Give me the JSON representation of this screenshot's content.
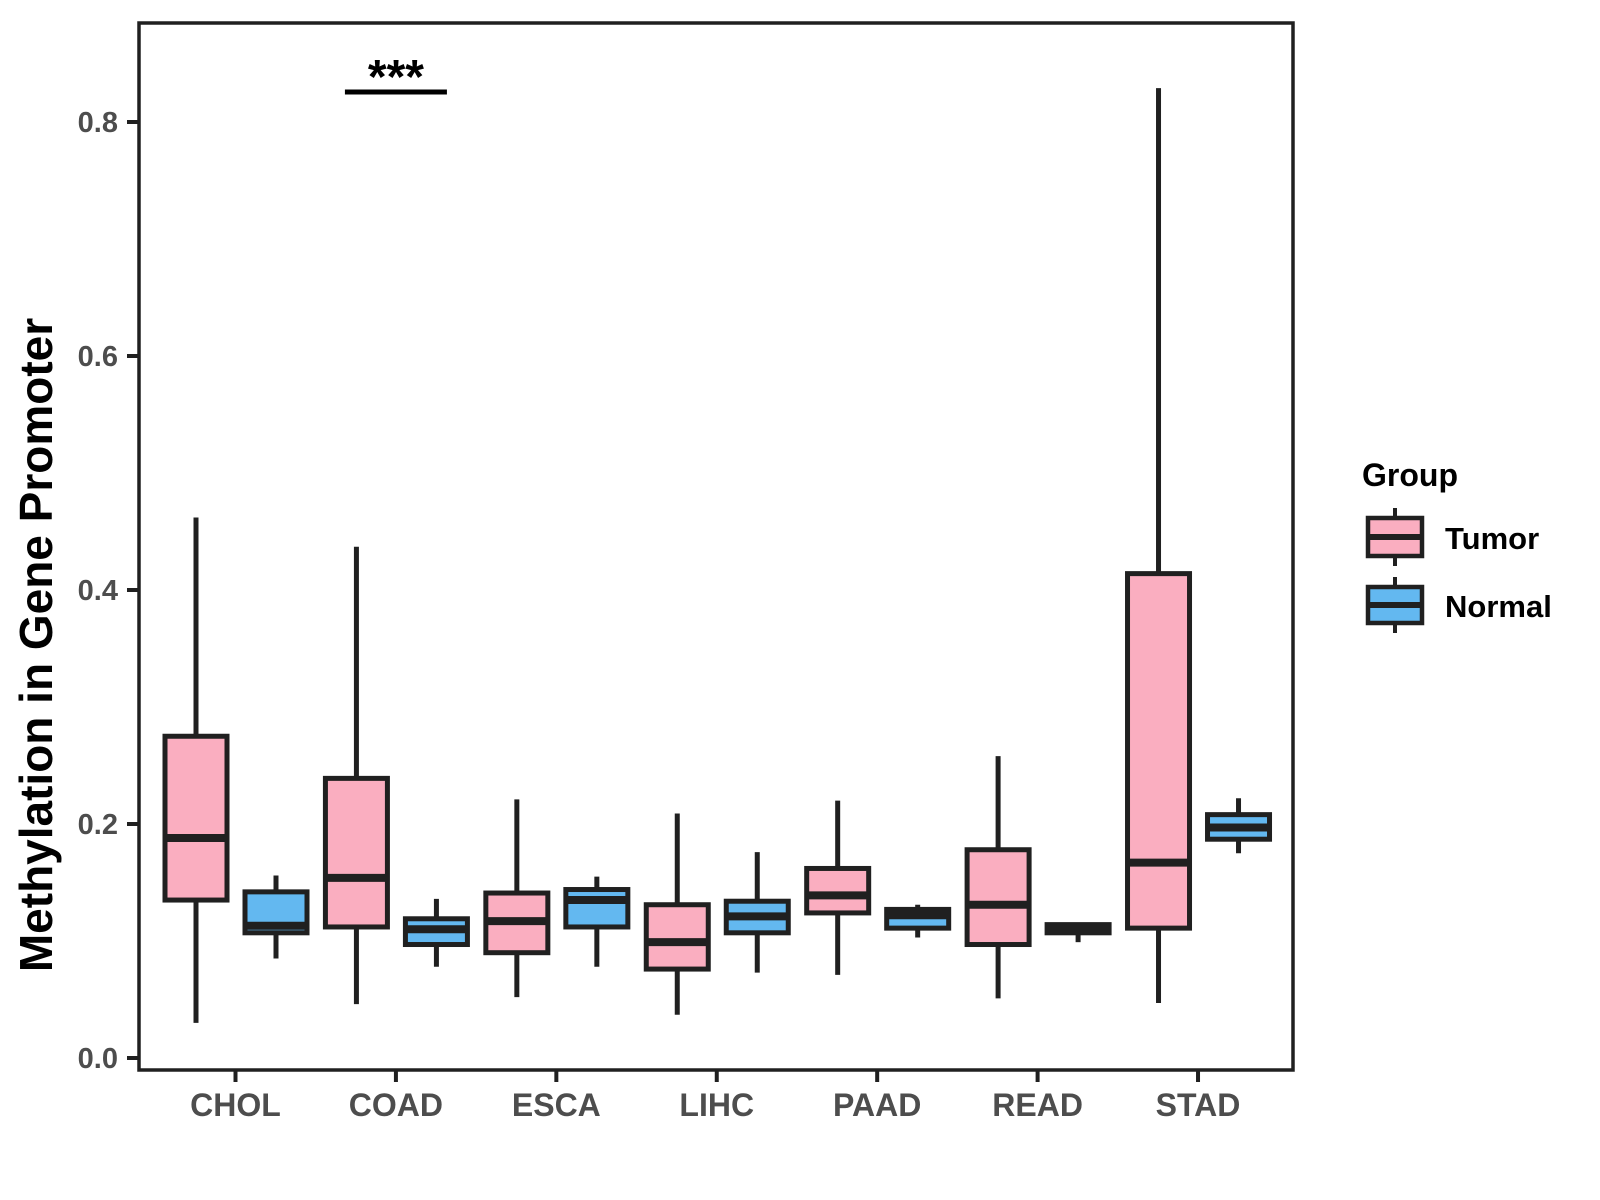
{
  "chart_data": {
    "type": "boxplot",
    "title": "",
    "xlabel": "",
    "ylabel": "Methylation in Gene Promoter",
    "categories": [
      "CHOL",
      "COAD",
      "ESCA",
      "LIHC",
      "PAAD",
      "READ",
      "STAD"
    ],
    "y_tick_labels": [
      "0.0",
      "0.2",
      "0.4",
      "0.6",
      "0.8"
    ],
    "ylim": [
      -0.015,
      0.885
    ],
    "grid": "off",
    "legend_position": "right",
    "box_stat_order": [
      "whisker_low",
      "q1",
      "median",
      "q3",
      "whisker_high"
    ],
    "series": [
      {
        "name": "Tumor",
        "color": "#FAAEC0",
        "values": [
          [
            0.03,
            0.135,
            0.188,
            0.275,
            0.462
          ],
          [
            0.046,
            0.112,
            0.154,
            0.239,
            0.437
          ],
          [
            0.052,
            0.09,
            0.117,
            0.141,
            0.221
          ],
          [
            0.037,
            0.076,
            0.099,
            0.131,
            0.209
          ],
          [
            0.071,
            0.124,
            0.139,
            0.162,
            0.22
          ],
          [
            0.051,
            0.097,
            0.131,
            0.178,
            0.258
          ],
          [
            0.047,
            0.111,
            0.167,
            0.414,
            0.829
          ]
        ]
      },
      {
        "name": "Normal",
        "color": "#63B8F0",
        "values": [
          [
            0.085,
            0.107,
            0.113,
            0.142,
            0.156
          ],
          [
            0.078,
            0.097,
            0.11,
            0.119,
            0.136
          ],
          [
            0.078,
            0.112,
            0.135,
            0.144,
            0.155
          ],
          [
            0.073,
            0.107,
            0.121,
            0.134,
            0.176
          ],
          [
            0.103,
            0.111,
            0.122,
            0.127,
            0.131
          ],
          [
            0.099,
            0.107,
            0.111,
            0.114,
            0.115
          ],
          [
            0.175,
            0.187,
            0.197,
            0.208,
            0.222
          ]
        ]
      }
    ],
    "annotation": {
      "text": "***",
      "category": "COAD"
    }
  },
  "legend": {
    "title": "Group",
    "items": [
      {
        "label": "Tumor",
        "color": "#FAAEC0"
      },
      {
        "label": "Normal",
        "color": "#63B8F0"
      }
    ]
  },
  "colors": {
    "box_border": "#202020",
    "whisker": "#202020",
    "median": "#202020",
    "panel_border": "#202020",
    "axis_tick": "#202020",
    "axis_text": "#4d4d4d",
    "axis_title": "#000000",
    "annotation": "#000000",
    "background": "#ffffff"
  }
}
